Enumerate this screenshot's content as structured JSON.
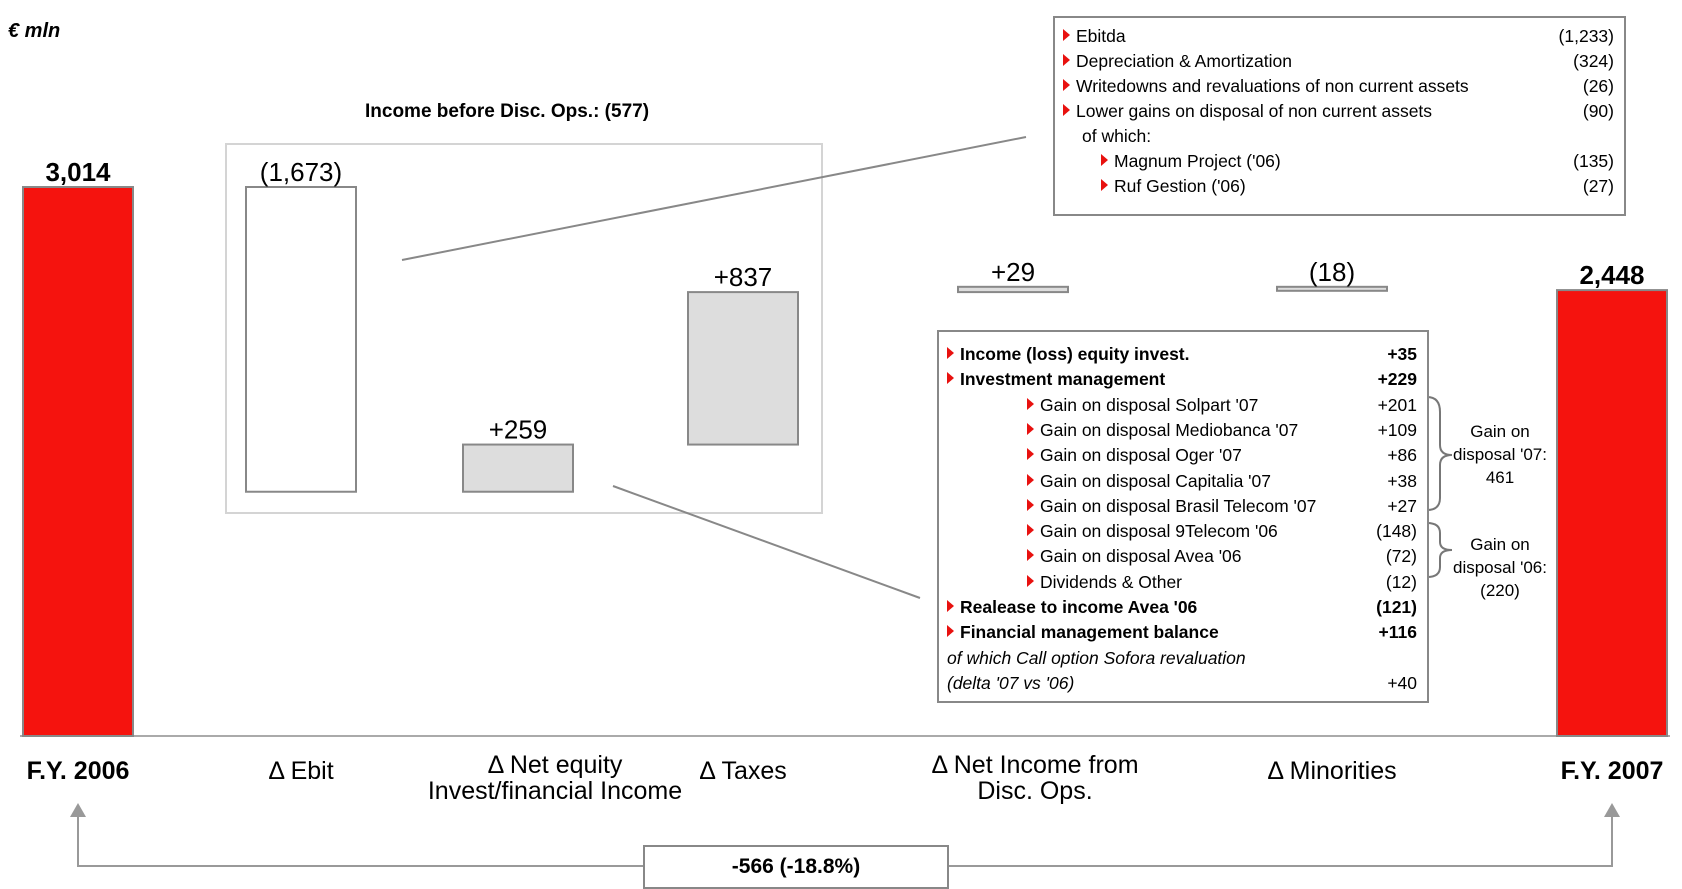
{
  "unit_label": "€ mln",
  "colors": {
    "endpoint": "#f5130e",
    "decrease": "#ffffff",
    "increase": "#dddddd",
    "outline": "#888888",
    "bullet": "#e8110f"
  },
  "chart_data": {
    "type": "bar",
    "subtype": "waterfall",
    "categories": [
      "F.Y. 2006",
      "Δ Ebit",
      "Δ Net equity Invest/financial Income",
      "Δ Taxes",
      "Δ Net Income from Disc. Ops.",
      "Δ Minorities",
      "F.Y. 2007"
    ],
    "values": [
      3014,
      -1673,
      259,
      837,
      29,
      -18,
      2448
    ],
    "value_labels": [
      "3,014",
      "(1,673)",
      "+259",
      "+837",
      "+29",
      "(18)",
      "2,448"
    ],
    "kinds": [
      "total",
      "decrease",
      "increase",
      "increase",
      "increase",
      "decrease",
      "total"
    ],
    "ylim": [
      0,
      3014
    ],
    "grid": false,
    "total_change_label": "-566 (-18.8%)",
    "group_label": "Income before Disc. Ops.: (577)"
  },
  "ebit_breakdown": {
    "items": [
      {
        "label": "Ebitda",
        "value": "(1,233)",
        "bullet": true,
        "indent": 0
      },
      {
        "label": "Depreciation & Amortization",
        "value": "(324)",
        "bullet": true,
        "indent": 0
      },
      {
        "label": "Writedowns and revaluations of non current assets",
        "value": "(26)",
        "bullet": true,
        "indent": 0
      },
      {
        "label": "Lower gains on disposal  of non current assets",
        "value": "(90)",
        "bullet": true,
        "indent": 0
      },
      {
        "label": "of which:",
        "value": "",
        "bullet": false,
        "indent": 1
      },
      {
        "label": "Magnum Project ('06)",
        "value": "(135)",
        "bullet": true,
        "indent": 2
      },
      {
        "label": "Ruf Gestion ('06)",
        "value": "(27)",
        "bullet": true,
        "indent": 2
      }
    ]
  },
  "equity_breakdown": {
    "items": [
      {
        "label": "Income (loss) equity invest.",
        "value": "+35",
        "bullet": true,
        "bold": true,
        "italic": false,
        "indent": 0
      },
      {
        "label": "Investment management",
        "value": "+229",
        "bullet": true,
        "bold": true,
        "italic": false,
        "indent": 0
      },
      {
        "label": "Gain on disposal Solpart '07",
        "value": "+201",
        "bullet": true,
        "bold": false,
        "italic": false,
        "indent": 1
      },
      {
        "label": "Gain on disposal Mediobanca '07",
        "value": "+109",
        "bullet": true,
        "bold": false,
        "italic": false,
        "indent": 1
      },
      {
        "label": "Gain on disposal Oger '07",
        "value": "+86",
        "bullet": true,
        "bold": false,
        "italic": false,
        "indent": 1
      },
      {
        "label": "Gain on disposal Capitalia '07",
        "value": "+38",
        "bullet": true,
        "bold": false,
        "italic": false,
        "indent": 1
      },
      {
        "label": "Gain on disposal Brasil Telecom '07",
        "value": "+27",
        "bullet": true,
        "bold": false,
        "italic": false,
        "indent": 1
      },
      {
        "label": "Gain on disposal 9Telecom '06",
        "value": "(148)",
        "bullet": true,
        "bold": false,
        "italic": false,
        "indent": 1
      },
      {
        "label": "Gain on disposal Avea '06",
        "value": "(72)",
        "bullet": true,
        "bold": false,
        "italic": false,
        "indent": 1
      },
      {
        "label": "Dividends & Other",
        "value": "(12)",
        "bullet": true,
        "bold": false,
        "italic": false,
        "indent": 1
      },
      {
        "label": "Realease to income Avea '06",
        "value": "(121)",
        "bullet": true,
        "bold": true,
        "italic": false,
        "indent": 0
      },
      {
        "label": "Financial management balance",
        "value": "+116",
        "bullet": true,
        "bold": true,
        "italic": false,
        "indent": 0
      },
      {
        "label": "of which Call option Sofora revaluation",
        "value": "",
        "bullet": false,
        "bold": false,
        "italic": true,
        "indent": 0
      },
      {
        "label": "(delta '07 vs '06)",
        "value": "+40",
        "bullet": false,
        "bold": false,
        "italic": true,
        "indent": 0
      }
    ],
    "brace_2007_label": "Gain on disposal '07: 461",
    "brace_2006_label": "Gain on disposal '06: (220)"
  }
}
